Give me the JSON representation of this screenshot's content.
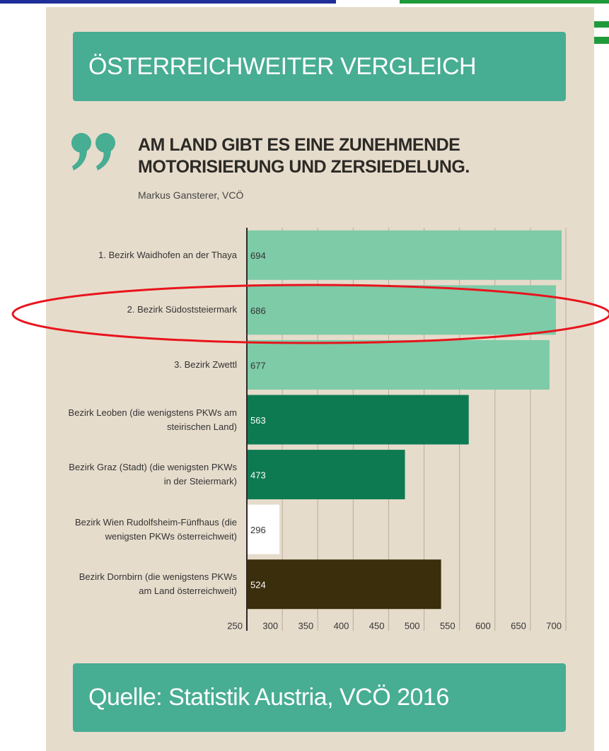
{
  "header": {
    "title": "ÖSTERREICHWEITER VERGLEICH"
  },
  "quote": {
    "text": "AM LAND GIBT ES EINE ZUNEHMENDE MOTORISIERUNG UND ZERSIEDELUNG.",
    "author": "Markus Gansterer, VCÖ"
  },
  "chart_data": {
    "type": "bar",
    "orientation": "horizontal",
    "categories": [
      "1. Bezirk Waidhofen an der Thaya",
      "2. Bezirk Südoststeiermark",
      "3. Bezirk Zwettl",
      "Bezirk Leoben (die wenigstens PKWs am steirischen Land)",
      "Bezirk Graz (Stadt) (die wenigsten PKWs in der Steiermark)",
      "Bezirk Wien Rudolfsheim-Fünfhaus (die wenigsten PKWs österreichweit)",
      "Bezirk Dornbirn (die wenigstens PKWs am Land österreichweit)"
    ],
    "values": [
      694,
      686,
      677,
      563,
      473,
      296,
      524
    ],
    "colors": [
      "#7ecba8",
      "#7ecba8",
      "#7ecba8",
      "#0e7a52",
      "#0e7a52",
      "#ffffff",
      "#3b2e0c"
    ],
    "xlim": [
      250,
      700
    ],
    "xticks": [
      250,
      300,
      350,
      400,
      450,
      500,
      550,
      600,
      650,
      700
    ],
    "grid": true
  },
  "footer": {
    "source": "Quelle: Statistik Austria, VCÖ 2016"
  }
}
